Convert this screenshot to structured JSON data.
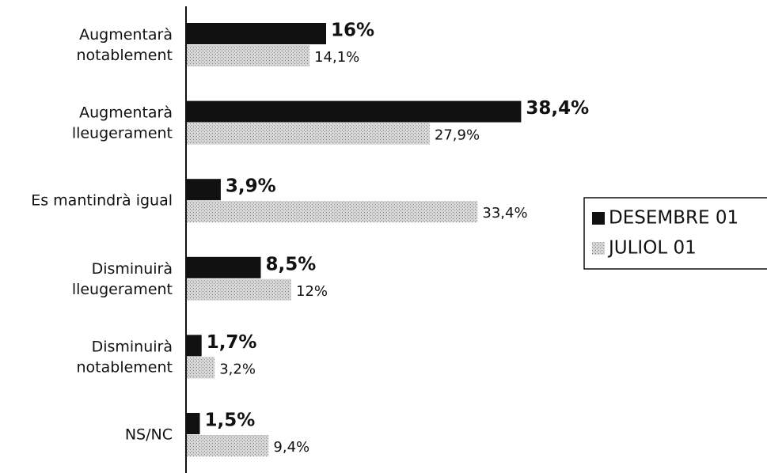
{
  "chart_data": {
    "type": "hbar",
    "categories": [
      "Augmentarà\nnotablement",
      "Augmentarà\nlleugerament",
      "Es mantindrà igual",
      "Disminuirà\nlleugerament",
      "Disminuirà\nnotablement",
      "NS/NC"
    ],
    "series": [
      {
        "name": "DESEMBRE 01",
        "color": "#111111",
        "values": [
          16,
          38.4,
          3.9,
          8.5,
          1.7,
          1.5
        ],
        "value_labels": [
          "16%",
          "38,4%",
          "3,9%",
          "8,5%",
          "1,7%",
          "1,5%"
        ]
      },
      {
        "name": "JULIOL 01",
        "color": "#c4c4c4",
        "values": [
          14.1,
          27.9,
          33.4,
          12,
          3.2,
          9.4
        ],
        "value_labels": [
          "14,1%",
          "27,9%",
          "33,4%",
          "12%",
          "3,2%",
          "9,4%"
        ]
      }
    ],
    "legend": "right"
  }
}
